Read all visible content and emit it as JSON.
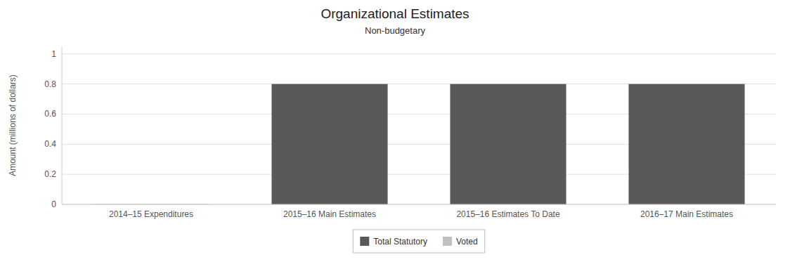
{
  "chart_data": {
    "type": "bar",
    "stacked": true,
    "title": "Organizational Estimates",
    "subtitle": "Non-budgetary",
    "ylabel": "Amount (millions of dollars)",
    "categories": [
      "2014–15 Expenditures",
      "2015–16 Main Estimates",
      "2015–16 Estimates To Date",
      "2016–17 Main Estimates"
    ],
    "series": [
      {
        "name": "Total Statutory",
        "color": "#595959",
        "values": [
          0.0,
          0.8,
          0.8,
          0.8
        ]
      },
      {
        "name": "Voted",
        "color": "#c0c0c0",
        "values": [
          0.003,
          0.001,
          0.001,
          0.001
        ]
      }
    ],
    "ylim": [
      0,
      1.05
    ],
    "yticks": [
      0,
      0.2,
      0.4,
      0.6,
      0.8,
      1
    ],
    "grid": true,
    "legend": "bottom"
  }
}
